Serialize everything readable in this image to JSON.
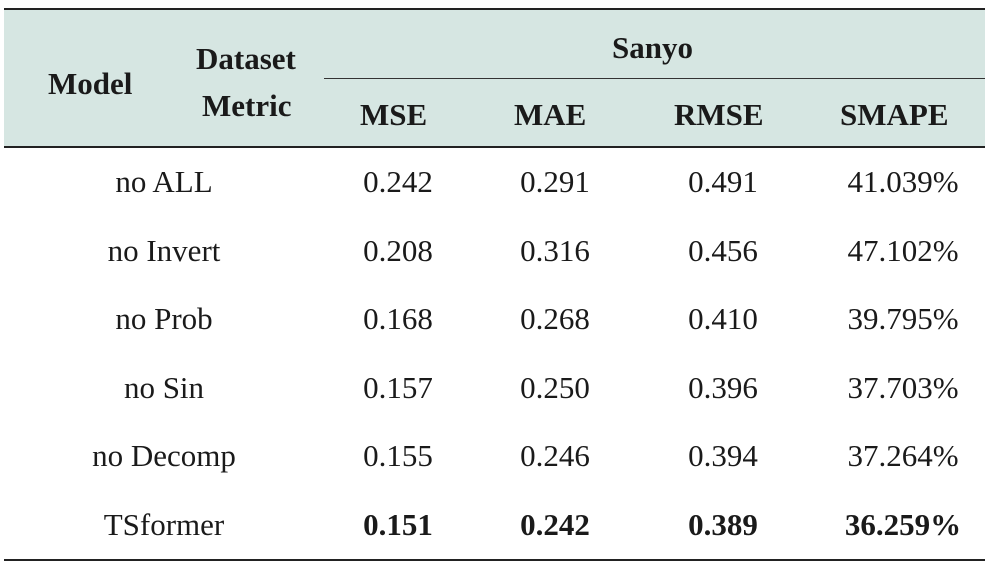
{
  "header": {
    "model": "Model",
    "dataset": "Dataset",
    "metric": "Metric",
    "group": "Sanyo",
    "columns": [
      "MSE",
      "MAE",
      "RMSE",
      "SMAPE"
    ]
  },
  "rows": [
    {
      "model": "no ALL",
      "values": [
        "0.242",
        "0.291",
        "0.491",
        "41.039%"
      ]
    },
    {
      "model": "no Invert",
      "values": [
        "0.208",
        "0.316",
        "0.456",
        "47.102%"
      ]
    },
    {
      "model": "no Prob",
      "values": [
        "0.168",
        "0.268",
        "0.410",
        "39.795%"
      ]
    },
    {
      "model": "no Sin",
      "values": [
        "0.157",
        "0.250",
        "0.396",
        "37.703%"
      ]
    },
    {
      "model": "no Decomp",
      "values": [
        "0.155",
        "0.246",
        "0.394",
        "37.264%"
      ]
    },
    {
      "model": "TSformer",
      "values": [
        "0.151",
        "0.242",
        "0.389",
        "36.259%"
      ]
    }
  ]
}
